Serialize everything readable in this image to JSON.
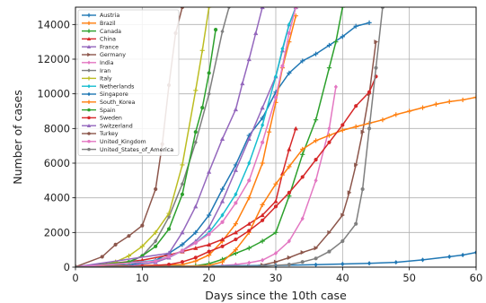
{
  "chart_data": {
    "type": "line",
    "xlabel": "Days since the 10th case",
    "ylabel": "Number of cases",
    "xlim": [
      0,
      60
    ],
    "ylim": [
      0,
      15000
    ],
    "xticks": [
      "0",
      "10",
      "20",
      "30",
      "40",
      "50",
      "60"
    ],
    "yticks": [
      "0",
      "2000",
      "4000",
      "6000",
      "8000",
      "10000",
      "12000",
      "14000"
    ],
    "grid": true,
    "legend_position": "top-left",
    "series": [
      {
        "name": "Austria",
        "color": "#1f77b4",
        "marker": "plus",
        "x": [
          0,
          8,
          12,
          14,
          16,
          18,
          20,
          22,
          24,
          26,
          28,
          30,
          32,
          34,
          36,
          38,
          40,
          42,
          44
        ],
        "y": [
          20,
          130,
          400,
          800,
          1300,
          2000,
          3000,
          4500,
          5900,
          7600,
          8600,
          10100,
          11200,
          11900,
          12300,
          12800,
          13300,
          13900,
          14100
        ]
      },
      {
        "name": "Brazil",
        "color": "#ff7f0e",
        "marker": "plus",
        "x": [
          0,
          16,
          18,
          20,
          22,
          24,
          26,
          28,
          29,
          30,
          31,
          32,
          33
        ],
        "y": [
          10,
          150,
          350,
          700,
          1500,
          2500,
          4000,
          6000,
          7800,
          9500,
          11500,
          13000,
          14500
        ]
      },
      {
        "name": "Canada",
        "color": "#2ca02c",
        "marker": "plus",
        "x": [
          0,
          18,
          20,
          22,
          24,
          26,
          28,
          30,
          32,
          34,
          36,
          38,
          39,
          40
        ],
        "y": [
          10,
          80,
          200,
          450,
          800,
          1100,
          1500,
          2000,
          4100,
          6500,
          8500,
          11500,
          13000,
          15000
        ]
      },
      {
        "name": "China",
        "color": "#d62728",
        "marker": "triangle-up",
        "x": [
          0,
          10,
          14,
          16,
          18,
          20,
          22,
          24,
          26,
          28,
          30,
          31,
          32,
          33
        ],
        "y": [
          10,
          400,
          700,
          900,
          1100,
          1300,
          1600,
          2000,
          2500,
          3000,
          3800,
          5400,
          6800,
          8000
        ]
      },
      {
        "name": "France",
        "color": "#9467bd",
        "marker": "triangle-up",
        "x": [
          0,
          8,
          12,
          14,
          16,
          18,
          20,
          22,
          24,
          26,
          28,
          30,
          31,
          32,
          33
        ],
        "y": [
          12,
          60,
          280,
          550,
          950,
          1500,
          2300,
          3800,
          5600,
          7400,
          9200,
          11000,
          12500,
          14000,
          15000
        ]
      },
      {
        "name": "Germany",
        "color": "#8c564b",
        "marker": "triangle-right",
        "x": [
          0,
          26,
          28,
          30,
          32,
          34,
          36,
          38,
          40,
          41,
          42,
          43,
          44,
          45
        ],
        "y": [
          10,
          40,
          120,
          300,
          550,
          850,
          1100,
          2000,
          3000,
          4300,
          5900,
          7800,
          10000,
          13000
        ]
      },
      {
        "name": "India",
        "color": "#e377c2",
        "marker": "diamond",
        "x": [
          0,
          20,
          22,
          24,
          26,
          28,
          30,
          32,
          34,
          36,
          38,
          39
        ],
        "y": [
          10,
          40,
          90,
          150,
          250,
          400,
          800,
          1500,
          2800,
          5000,
          8000,
          10400
        ]
      },
      {
        "name": "Iran",
        "color": "#7f7f7f",
        "marker": "diamond",
        "x": [
          0,
          6,
          8,
          10,
          12,
          14,
          16,
          18,
          20,
          22,
          23
        ],
        "y": [
          18,
          100,
          250,
          650,
          1500,
          2900,
          4800,
          7200,
          10000,
          13600,
          15000
        ]
      },
      {
        "name": "Italy",
        "color": "#bcbd22",
        "marker": "plus",
        "x": [
          0,
          4,
          6,
          8,
          10,
          12,
          14,
          16,
          18,
          19,
          20
        ],
        "y": [
          10,
          100,
          300,
          650,
          1200,
          2000,
          3100,
          5900,
          10200,
          12500,
          15000
        ]
      },
      {
        "name": "Netherlands",
        "color": "#17becf",
        "marker": "diamond",
        "x": [
          0,
          12,
          14,
          16,
          18,
          20,
          22,
          24,
          26,
          28,
          30,
          31,
          32,
          33
        ],
        "y": [
          10,
          380,
          600,
          950,
          1400,
          2000,
          3000,
          4200,
          6000,
          8200,
          11000,
          12600,
          14000,
          15000
        ]
      },
      {
        "name": "Singapore",
        "color": "#1f77b4",
        "marker": "diamond",
        "x": [
          0,
          10,
          20,
          30,
          36,
          40,
          44,
          48,
          52,
          56,
          58,
          60
        ],
        "y": [
          10,
          40,
          70,
          100,
          140,
          180,
          220,
          280,
          420,
          600,
          700,
          850
        ]
      },
      {
        "name": "South_Korea",
        "color": "#ff7f0e",
        "marker": "plus",
        "x": [
          0,
          16,
          20,
          22,
          24,
          26,
          28,
          30,
          32,
          34,
          36,
          38,
          40,
          42,
          44,
          46,
          48,
          50,
          52,
          54,
          56,
          58,
          60
        ],
        "y": [
          10,
          50,
          100,
          300,
          1000,
          2000,
          3600,
          4800,
          5800,
          6800,
          7300,
          7600,
          7900,
          8100,
          8300,
          8500,
          8800,
          9000,
          9200,
          9400,
          9550,
          9650,
          9800
        ]
      },
      {
        "name": "Spain",
        "color": "#2ca02c",
        "marker": "circle",
        "x": [
          0,
          8,
          10,
          12,
          14,
          16,
          18,
          19,
          20,
          21
        ],
        "y": [
          10,
          300,
          650,
          1200,
          2200,
          4200,
          7800,
          9200,
          11200,
          13700
        ]
      },
      {
        "name": "Sweden",
        "color": "#d62728",
        "marker": "circle",
        "x": [
          0,
          10,
          14,
          16,
          18,
          20,
          22,
          24,
          26,
          28,
          30,
          32,
          34,
          36,
          38,
          40,
          42,
          44,
          45
        ],
        "y": [
          10,
          50,
          150,
          300,
          550,
          900,
          1200,
          1600,
          2100,
          2700,
          3500,
          4300,
          5200,
          6200,
          7200,
          8200,
          9300,
          10100,
          11000
        ]
      },
      {
        "name": "Switzerland",
        "color": "#9467bd",
        "marker": "triangle-up",
        "x": [
          0,
          14,
          16,
          18,
          20,
          22,
          24,
          25,
          26,
          27,
          28
        ],
        "y": [
          10,
          800,
          2000,
          3500,
          5500,
          7400,
          9100,
          10600,
          12000,
          13500,
          15000
        ]
      },
      {
        "name": "Turkey",
        "color": "#8c564b",
        "marker": "circle",
        "x": [
          0,
          4,
          6,
          8,
          10,
          12,
          13,
          14,
          15,
          16
        ],
        "y": [
          18,
          600,
          1300,
          1800,
          2400,
          4500,
          7100,
          10500,
          13500,
          15000
        ]
      },
      {
        "name": "United_Kingdom",
        "color": "#e377c2",
        "marker": "circle",
        "x": [
          0,
          12,
          14,
          16,
          18,
          20,
          22,
          24,
          26,
          28,
          30,
          31,
          32,
          33
        ],
        "y": [
          10,
          350,
          600,
          950,
          1400,
          1900,
          2600,
          3700,
          5000,
          7200,
          9800,
          11600,
          13500,
          15000
        ]
      },
      {
        "name": "United_States_of_America",
        "color": "#7f7f7f",
        "marker": "circle",
        "x": [
          0,
          28,
          32,
          34,
          36,
          38,
          40,
          42,
          43,
          44,
          45,
          46
        ],
        "y": [
          10,
          50,
          150,
          300,
          500,
          900,
          1500,
          2500,
          4500,
          8000,
          11500,
          15000
        ]
      }
    ]
  }
}
